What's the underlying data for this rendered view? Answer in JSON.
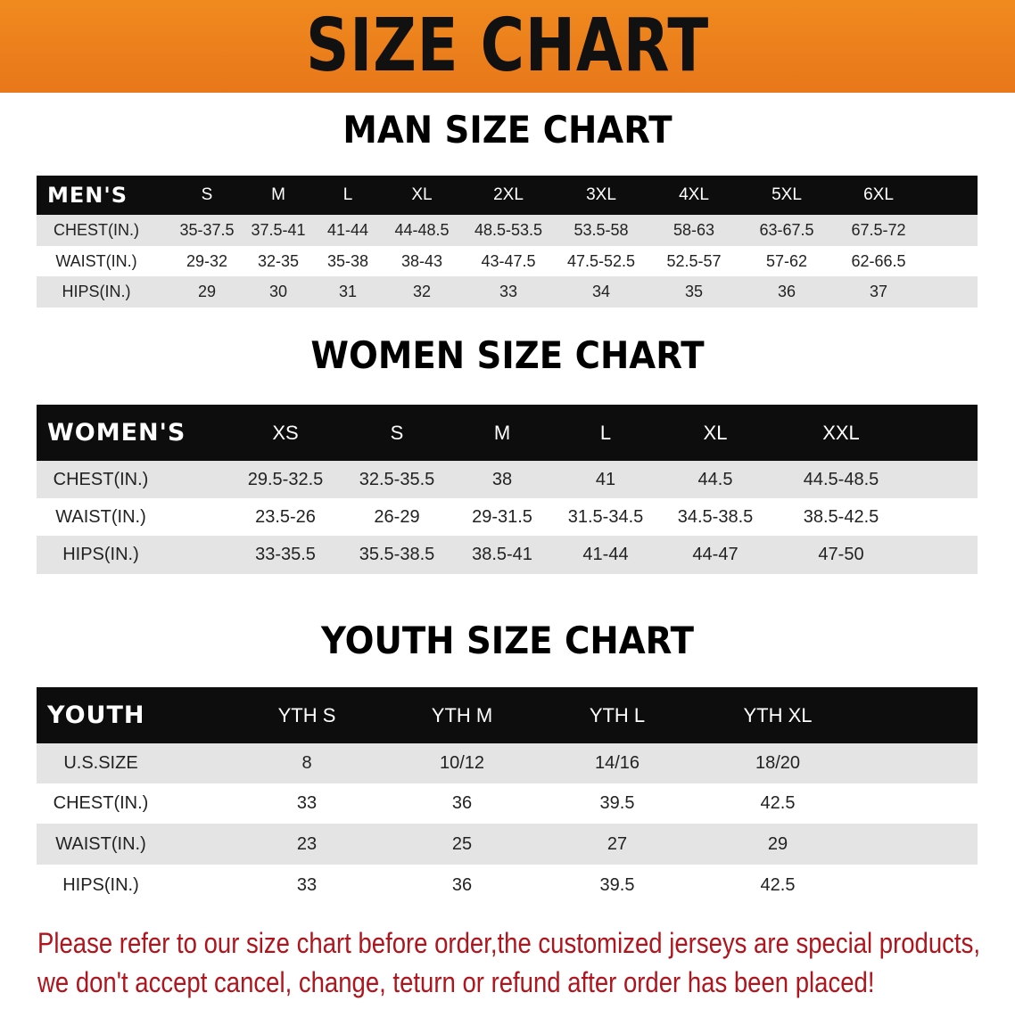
{
  "banner": {
    "title": "SIZE CHART",
    "color": "#ec801c"
  },
  "men": {
    "title": "MAN SIZE CHART",
    "header": "MEN'S",
    "sizes": [
      "S",
      "M",
      "L",
      "XL",
      "2XL",
      "3XL",
      "4XL",
      "5XL",
      "6XL"
    ],
    "rows": [
      {
        "label": "CHEST(IN.)",
        "values": [
          "35-37.5",
          "37.5-41",
          "41-44",
          "44-48.5",
          "48.5-53.5",
          "53.5-58",
          "58-63",
          "63-67.5",
          "67.5-72"
        ]
      },
      {
        "label": "WAIST(IN.)",
        "values": [
          "29-32",
          "32-35",
          "35-38",
          "38-43",
          "43-47.5",
          "47.5-52.5",
          "52.5-57",
          "57-62",
          "62-66.5"
        ]
      },
      {
        "label": "HIPS(IN.)",
        "values": [
          "29",
          "30",
          "31",
          "32",
          "33",
          "34",
          "35",
          "36",
          "37"
        ]
      }
    ]
  },
  "women": {
    "title": "WOMEN SIZE CHART",
    "header": "WOMEN'S",
    "sizes": [
      "XS",
      "S",
      "M",
      "L",
      "XL",
      "XXL"
    ],
    "rows": [
      {
        "label": "CHEST(IN.)",
        "values": [
          "29.5-32.5",
          "32.5-35.5",
          "38",
          "41",
          "44.5",
          "44.5-48.5"
        ]
      },
      {
        "label": "WAIST(IN.)",
        "values": [
          "23.5-26",
          "26-29",
          "29-31.5",
          "31.5-34.5",
          "34.5-38.5",
          "38.5-42.5"
        ]
      },
      {
        "label": "HIPS(IN.)",
        "values": [
          "33-35.5",
          "35.5-38.5",
          "38.5-41",
          "41-44",
          "44-47",
          "47-50"
        ]
      }
    ]
  },
  "youth": {
    "title": "YOUTH SIZE CHART",
    "header": "YOUTH",
    "sizes": [
      "YTH S",
      "YTH M",
      "YTH L",
      "YTH XL"
    ],
    "rows": [
      {
        "label": "U.S.SIZE",
        "values": [
          "8",
          "10/12",
          "14/16",
          "18/20"
        ]
      },
      {
        "label": "CHEST(IN.)",
        "values": [
          "33",
          "36",
          "39.5",
          "42.5"
        ]
      },
      {
        "label": "WAIST(IN.)",
        "values": [
          "23",
          "25",
          "27",
          "29"
        ]
      },
      {
        "label": "HIPS(IN.)",
        "values": [
          "33",
          "36",
          "39.5",
          "42.5"
        ]
      }
    ]
  },
  "notice": {
    "line1": "Please refer to our size chart before order,the customized jerseys are special products,",
    "line2": "we don't accept cancel, change, teturn or refund after order has been placed!",
    "color": "#b0141c"
  }
}
